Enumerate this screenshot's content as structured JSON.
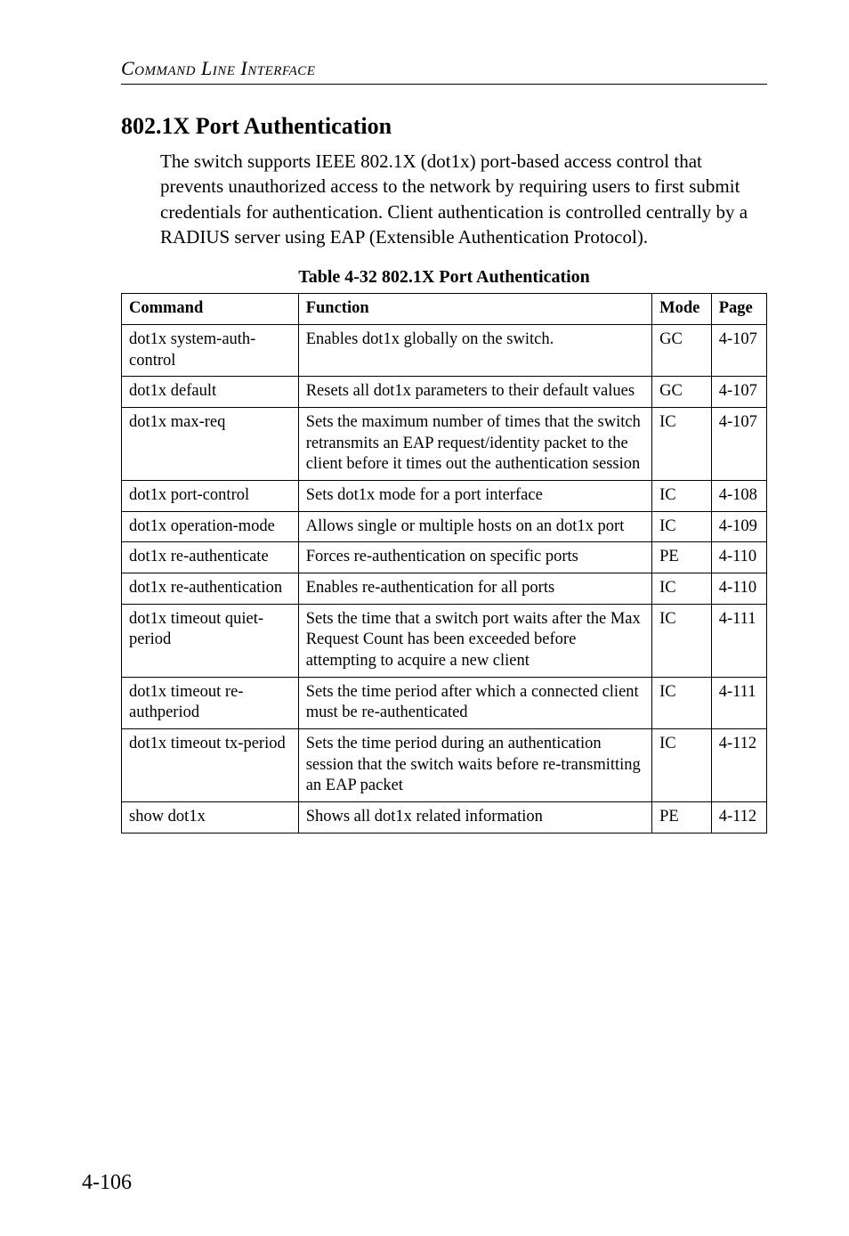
{
  "runningHead": "Command Line Interface",
  "sectionTitle": "802.1X Port Authentication",
  "bodyPara": "The switch supports IEEE 802.1X (dot1x) port-based access control that prevents unauthorized access to the network by requiring users to first submit credentials for authentication. Client authentication is controlled centrally by a RADIUS server using EAP (Extensible Authentication Protocol).",
  "tableCaption": "Table 4-32  802.1X Port Authentication",
  "columns": [
    "Command",
    "Function",
    "Mode",
    "Page"
  ],
  "rows": [
    {
      "cmd": "dot1x system-auth-control",
      "func": "Enables dot1x globally on the switch.",
      "mode": "GC",
      "page": "4-107"
    },
    {
      "cmd": "dot1x default",
      "func": "Resets all dot1x parameters to their default values",
      "mode": "GC",
      "page": "4-107"
    },
    {
      "cmd": "dot1x max-req",
      "func": "Sets the maximum number of times that the switch retransmits an EAP request/identity packet to the client before it times out the authentication session",
      "mode": "IC",
      "page": "4-107"
    },
    {
      "cmd": "dot1x port-control",
      "func": "Sets dot1x mode for a port interface",
      "mode": "IC",
      "page": "4-108"
    },
    {
      "cmd": "dot1x operation-mode",
      "func": "Allows single or multiple hosts on an dot1x port",
      "mode": "IC",
      "page": "4-109"
    },
    {
      "cmd": "dot1x re-authenticate",
      "func": "Forces re-authentication on specific ports",
      "mode": "PE",
      "page": "4-110"
    },
    {
      "cmd": "dot1x re-authentication",
      "func": "Enables re-authentication for all ports",
      "mode": "IC",
      "page": "4-110"
    },
    {
      "cmd": "dot1x timeout quiet-period",
      "func": "Sets the time that a switch port waits after the Max Request Count has been exceeded before attempting to acquire a new client",
      "mode": "IC",
      "page": "4-111"
    },
    {
      "cmd": "dot1x timeout re-authperiod",
      "func": "Sets the time period after which a connected client must be re-authenticated",
      "mode": "IC",
      "page": "4-111"
    },
    {
      "cmd": "dot1x timeout tx-period",
      "func": "Sets the time period during an authentication session that the switch waits before re-transmitting an EAP packet",
      "mode": "IC",
      "page": "4-112"
    },
    {
      "cmd": "show dot1x",
      "func": "Shows all dot1x related information",
      "mode": "PE",
      "page": "4-112"
    }
  ],
  "pageNumber": "4-106"
}
